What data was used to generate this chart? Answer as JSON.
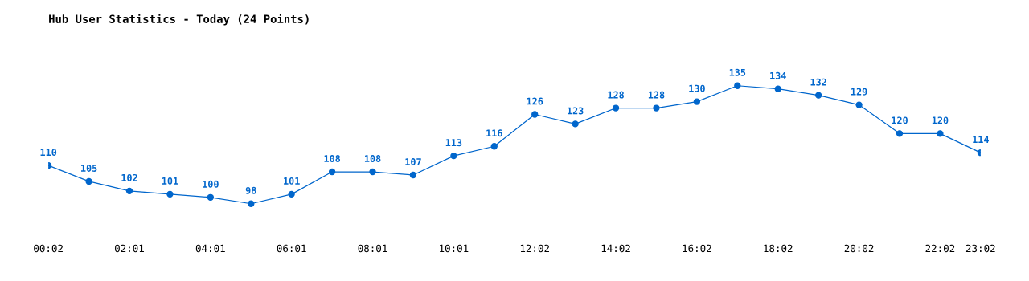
{
  "chart_data": {
    "type": "line",
    "title": "Hub User Statistics - Today (24 Points)",
    "categories": [
      "00:02",
      null,
      "02:01",
      null,
      "04:01",
      null,
      "06:01",
      null,
      "08:01",
      null,
      "10:01",
      null,
      "12:02",
      null,
      "14:02",
      null,
      "16:02",
      null,
      "18:02",
      null,
      "20:02",
      null,
      "22:02",
      "23:02"
    ],
    "series": [
      {
        "color": "#0066cc",
        "values": [
          110,
          105,
          102,
          101,
          100,
          98,
          101,
          108,
          108,
          107,
          113,
          116,
          126,
          123,
          128,
          128,
          130,
          135,
          134,
          132,
          129,
          120,
          120,
          114
        ]
      }
    ],
    "marker": "circle",
    "line_style": "solid",
    "data_labels": true,
    "grid": false,
    "legend": false
  }
}
